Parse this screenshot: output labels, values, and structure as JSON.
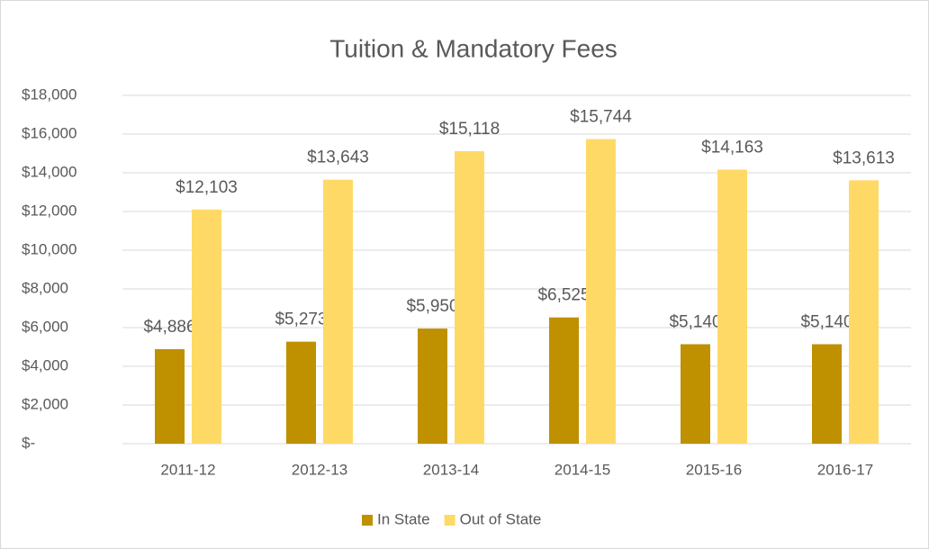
{
  "chart_data": {
    "type": "bar",
    "title": "Tuition & Mandatory Fees",
    "categories": [
      "2011-12",
      "2012-13",
      "2013-14",
      "2014-15",
      "2015-16",
      "2016-17"
    ],
    "series": [
      {
        "name": "In State",
        "color": "#bf9000",
        "values": [
          4886,
          5273,
          5950,
          6525,
          5140,
          5140
        ],
        "value_labels": [
          "$4,886",
          "$5,273",
          "$5,950",
          "$6,525",
          "$5,140",
          "$5,140"
        ]
      },
      {
        "name": "Out of State",
        "color": "#ffd966",
        "values": [
          12103,
          13643,
          15118,
          15744,
          14163,
          13613
        ],
        "value_labels": [
          "$12,103",
          "$13,643",
          "$15,118",
          "$15,744",
          "$14,163",
          "$13,613"
        ]
      }
    ],
    "ylim": [
      0,
      18000
    ],
    "yticks": [
      {
        "value": 0,
        "label": "$-"
      },
      {
        "value": 2000,
        "label": "$2,000"
      },
      {
        "value": 4000,
        "label": "$4,000"
      },
      {
        "value": 6000,
        "label": "$6,000"
      },
      {
        "value": 8000,
        "label": "$8,000"
      },
      {
        "value": 10000,
        "label": "$10,000"
      },
      {
        "value": 12000,
        "label": "$12,000"
      },
      {
        "value": 14000,
        "label": "$14,000"
      },
      {
        "value": 16000,
        "label": "$16,000"
      },
      {
        "value": 18000,
        "label": "$18,000"
      }
    ],
    "grid": true,
    "legend": "bottom"
  }
}
